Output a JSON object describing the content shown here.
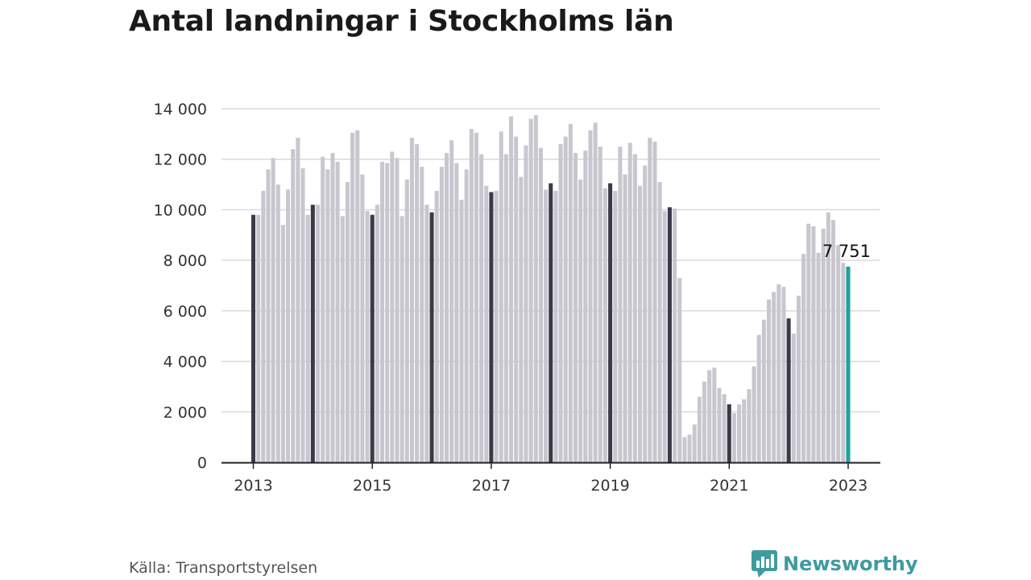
{
  "title": "Antal landningar i Stockholms län",
  "source": "Källa: Transportstyrelsen",
  "brand": {
    "name": "Newsworthy",
    "icon": "newsworthy-logo-icon",
    "color": "#3e9ba0"
  },
  "chart_data": {
    "type": "bar",
    "title": "Antal landningar i Stockholms län",
    "xlabel": "",
    "ylabel": "",
    "ylim": [
      0,
      14000
    ],
    "yticks": [
      0,
      2000,
      4000,
      6000,
      8000,
      10000,
      12000,
      14000
    ],
    "ytick_labels": [
      "0",
      "2 000",
      "4 000",
      "6 000",
      "8 000",
      "10 000",
      "12 000",
      "14 000"
    ],
    "xtick_labels": [
      "2013",
      "2015",
      "2017",
      "2019",
      "2021",
      "2023"
    ],
    "grid": true,
    "start": "2013-01",
    "end": "2023-01",
    "colors": {
      "regular": "#c8c7cf",
      "january": "#3b3a48",
      "latest": "#1aa59b",
      "grid": "#d9d9d9",
      "axis": "#222222"
    },
    "highlight_label": "7 751",
    "values": [
      9800,
      9800,
      10750,
      11600,
      12050,
      11000,
      9400,
      10800,
      12400,
      12850,
      11650,
      9800,
      10200,
      10200,
      12100,
      11600,
      12250,
      11900,
      9750,
      11100,
      13050,
      13150,
      11400,
      9950,
      9800,
      10200,
      11900,
      11850,
      12300,
      12050,
      9750,
      11200,
      12850,
      12600,
      11700,
      10200,
      9900,
      10750,
      11700,
      12250,
      12750,
      11850,
      10400,
      11600,
      13200,
      13050,
      12200,
      10950,
      10700,
      10750,
      13100,
      12200,
      13700,
      12900,
      11300,
      12550,
      13600,
      13750,
      12450,
      10800,
      11050,
      10750,
      12600,
      12900,
      13400,
      12250,
      11200,
      12350,
      13150,
      13450,
      12500,
      10850,
      11050,
      10750,
      12500,
      11400,
      12650,
      12200,
      10950,
      11750,
      12850,
      12700,
      11100,
      9950,
      10100,
      10050,
      7300,
      1000,
      1100,
      1500,
      2600,
      3200,
      3650,
      3750,
      2950,
      2700,
      2300,
      1950,
      2300,
      2500,
      2900,
      3800,
      5050,
      5650,
      6450,
      6750,
      7050,
      6950,
      5700,
      5100,
      6600,
      8250,
      9450,
      9350,
      8300,
      9250,
      9900,
      9600,
      8600,
      7900,
      7751
    ]
  }
}
